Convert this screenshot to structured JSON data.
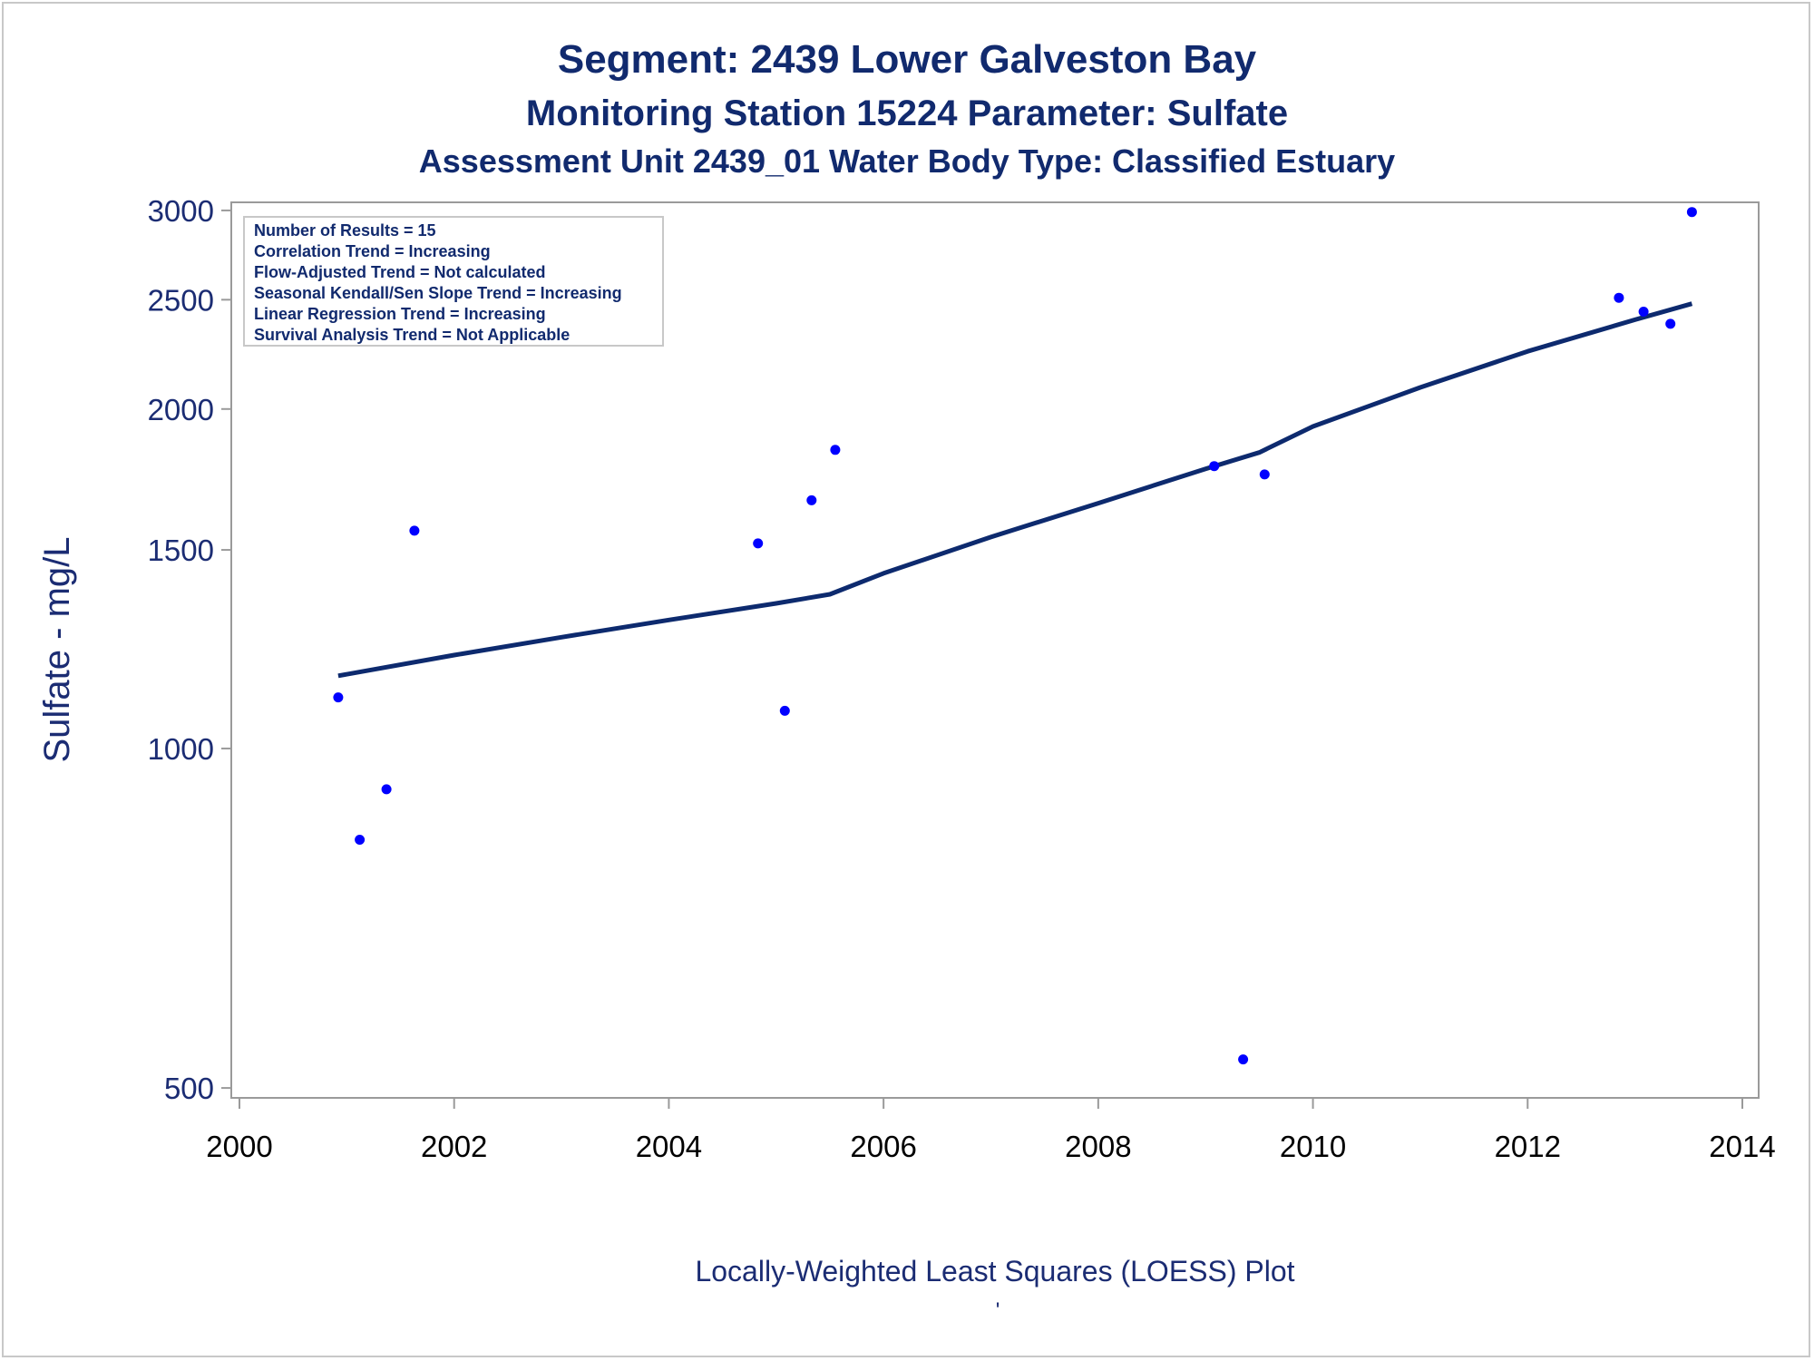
{
  "titles": {
    "line1": "Segment: 2439  Lower Galveston Bay",
    "line2": "Monitoring Station 15224 Parameter: Sulfate",
    "line3": "Assessment Unit 2439_01   Water Body Type: Classified Estuary"
  },
  "stats_box": [
    "Number of Results = 15",
    "Correlation Trend = Increasing",
    "Flow-Adjusted Trend = Not calculated",
    "Seasonal Kendall/Sen Slope Trend = Increasing",
    "Linear Regression Trend = Increasing",
    "Survival Analysis Trend = Not Applicable"
  ],
  "footer": {
    "caption": "Locally-Weighted Least Squares (LOESS) Plot",
    "mark": "'"
  },
  "colors": {
    "title": "#112a6e",
    "points": "#0000ff",
    "loess_line": "#0d2a6e",
    "axis_frame": "#9a9a9a"
  },
  "chart_data": {
    "type": "scatter",
    "ylabel": "Sulfate - mg/L",
    "xlabel": "",
    "yscale": "log",
    "xlim": [
      2000,
      2014
    ],
    "ylim": [
      490,
      3050
    ],
    "x_ticks": [
      "2000",
      "2002",
      "2004",
      "2006",
      "2008",
      "2010",
      "2012",
      "2014"
    ],
    "y_ticks": [
      "500",
      "1000",
      "1500",
      "2000",
      "2500",
      "3000"
    ],
    "grid": false,
    "legend": "none",
    "series": [
      {
        "type": "scatter",
        "x": [
          2000.92,
          2001.12,
          2001.37,
          2001.63,
          2004.83,
          2005.08,
          2005.33,
          2005.55,
          2009.08,
          2009.35,
          2009.55,
          2012.85,
          2013.08,
          2013.33,
          2013.53
        ],
        "y": [
          1110,
          830,
          920,
          1560,
          1520,
          1080,
          1660,
          1840,
          1780,
          530,
          1750,
          2510,
          2440,
          2380,
          2990
        ]
      },
      {
        "type": "line",
        "x": [
          2000.92,
          2002,
          2003,
          2004,
          2005,
          2005.5,
          2006,
          2007,
          2008,
          2009,
          2009.5,
          2010,
          2011,
          2012,
          2013,
          2013.53
        ],
        "y": [
          1160,
          1210,
          1255,
          1300,
          1345,
          1370,
          1430,
          1540,
          1650,
          1770,
          1830,
          1930,
          2090,
          2250,
          2400,
          2480
        ]
      }
    ]
  }
}
